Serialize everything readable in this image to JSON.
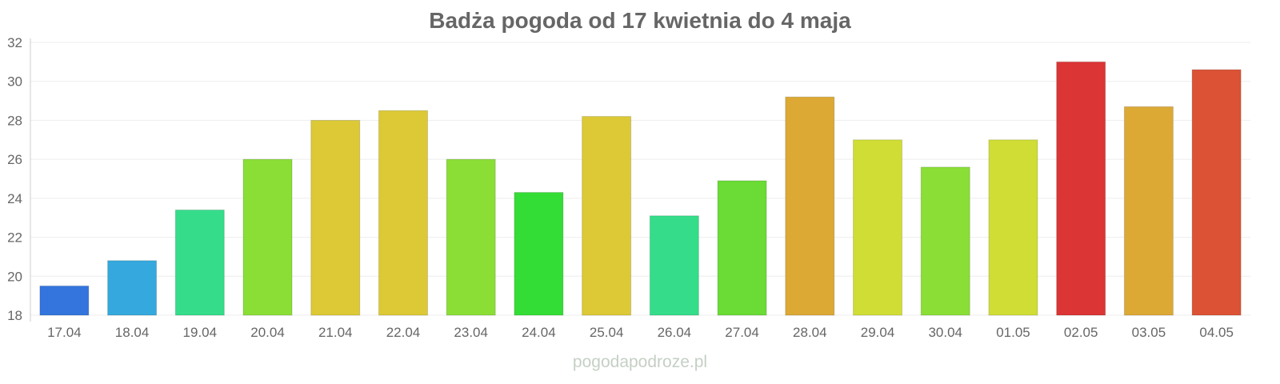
{
  "chart_data": {
    "type": "bar",
    "title": "Badża pogoda od 17 kwietnia do 4 maja",
    "xlabel": "",
    "ylabel": "",
    "ylim": [
      18,
      32
    ],
    "yticks": [
      18,
      20,
      22,
      24,
      26,
      28,
      30,
      32
    ],
    "grid": true,
    "categories": [
      "17.04",
      "18.04",
      "19.04",
      "20.04",
      "21.04",
      "22.04",
      "23.04",
      "24.04",
      "25.04",
      "26.04",
      "27.04",
      "28.04",
      "29.04",
      "30.04",
      "01.05",
      "02.05",
      "03.05",
      "04.05"
    ],
    "values": [
      19.5,
      20.8,
      23.4,
      26.0,
      28.0,
      28.5,
      26.0,
      24.3,
      28.2,
      23.1,
      24.9,
      29.2,
      27.0,
      25.6,
      27.0,
      31.0,
      28.7,
      30.6
    ],
    "colors": [
      "#3375dd",
      "#35a9dd",
      "#35dd8a",
      "#8ade35",
      "#dcc935",
      "#dcc935",
      "#8ade35",
      "#33dd35",
      "#dcc935",
      "#35dd8a",
      "#6adc35",
      "#dca935",
      "#d0dd35",
      "#8ade35",
      "#d0dd35",
      "#dc3535",
      "#dca935",
      "#dc5235"
    ]
  },
  "watermark": "pogodapodroze.pl"
}
